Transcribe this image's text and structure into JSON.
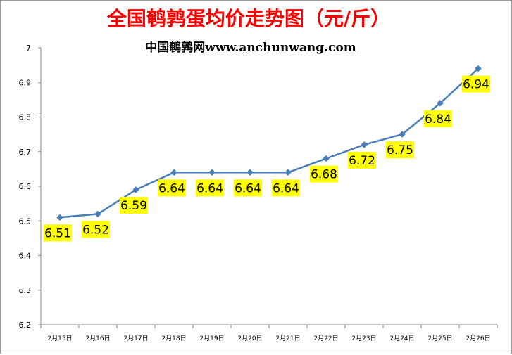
{
  "chart_data": {
    "type": "line",
    "title": "全国鹌鹑蛋均价走势图（元/斤）",
    "subtitle": "中国鹌鹑网www.anchunwang.com",
    "categories": [
      "2月15日",
      "2月16日",
      "2月17日",
      "2月18日",
      "2月19日",
      "2月20日",
      "2月21日",
      "2月22日",
      "2月23日",
      "2月24日",
      "2月25日",
      "2月26日"
    ],
    "series": [
      {
        "values": [
          6.51,
          6.52,
          6.59,
          6.64,
          6.64,
          6.64,
          6.64,
          6.68,
          6.72,
          6.75,
          6.84,
          6.94
        ]
      }
    ],
    "data_labels": [
      "6.51",
      "6.52",
      "6.59",
      "6.64",
      "6.64",
      "6.64",
      "6.64",
      "6.68",
      "6.72",
      "6.75",
      "6.84",
      "6.94"
    ],
    "yticks": [
      "6.2",
      "6.3",
      "6.4",
      "6.5",
      "6.6",
      "6.7",
      "6.8",
      "6.9",
      "7"
    ],
    "ylim": [
      6.2,
      7.0
    ],
    "grid": false,
    "legend": "none",
    "colors": {
      "line": "#4a7ebb",
      "label_background": "#ffff00",
      "title": "#ff0000",
      "axis": "#868686"
    }
  }
}
